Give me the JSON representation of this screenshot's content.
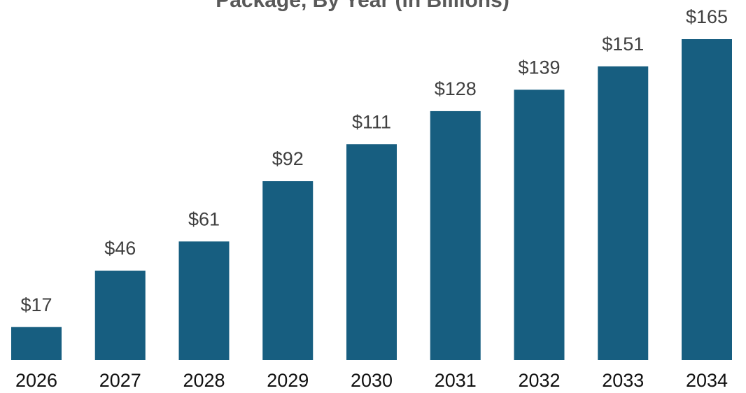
{
  "chart_data": {
    "type": "bar",
    "title": "Package, By Year (in Billions)",
    "categories": [
      "2026",
      "2027",
      "2028",
      "2029",
      "2030",
      "2031",
      "2032",
      "2033",
      "2034"
    ],
    "values": [
      17,
      46,
      61,
      92,
      111,
      128,
      139,
      151,
      165
    ],
    "value_labels": [
      "$17",
      "$46",
      "$61",
      "$92",
      "$111",
      "$128",
      "$139",
      "$151",
      "$165"
    ],
    "color": "#175e80"
  }
}
